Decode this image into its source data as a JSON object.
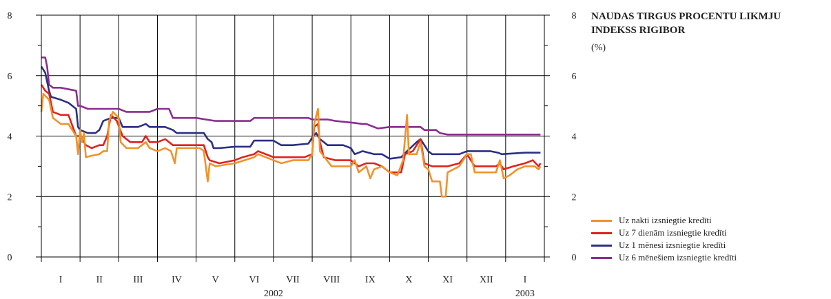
{
  "chart_data": {
    "type": "line",
    "title_lines": [
      "NAUDAS TIRGUS PROCENTU LIKMJU",
      "INDEKSS RIGIBOR"
    ],
    "unit": "(%)",
    "ylim": [
      0,
      8
    ],
    "yticks": [
      "0",
      "2",
      "4",
      "6",
      "8"
    ],
    "months": [
      "I",
      "II",
      "III",
      "IV",
      "V",
      "VI",
      "VII",
      "VIII",
      "IX",
      "X",
      "XI",
      "XII",
      "I"
    ],
    "years": [
      "2002",
      "2003"
    ],
    "grid": true,
    "legend_position": "right",
    "x_index_range": [
      0,
      13
    ],
    "series": [
      {
        "name": "Uz nakti izsniegtie kredīti",
        "color": "#f0922c",
        "values": [
          [
            0,
            4.8
          ],
          [
            0.05,
            5.4
          ],
          [
            0.2,
            5.2
          ],
          [
            0.3,
            4.6
          ],
          [
            0.5,
            4.4
          ],
          [
            0.7,
            4.4
          ],
          [
            0.9,
            4.0
          ],
          [
            0.95,
            3.4
          ],
          [
            1.0,
            4.2
          ],
          [
            1.05,
            3.8
          ],
          [
            1.1,
            4.1
          ],
          [
            1.15,
            3.3
          ],
          [
            1.3,
            3.35
          ],
          [
            1.5,
            3.4
          ],
          [
            1.6,
            3.5
          ],
          [
            1.7,
            3.5
          ],
          [
            1.75,
            4.5
          ],
          [
            1.85,
            4.8
          ],
          [
            2.0,
            4.6
          ],
          [
            2.05,
            3.8
          ],
          [
            2.2,
            3.6
          ],
          [
            2.5,
            3.6
          ],
          [
            2.7,
            3.8
          ],
          [
            2.8,
            3.6
          ],
          [
            3.0,
            3.5
          ],
          [
            3.2,
            3.6
          ],
          [
            3.35,
            3.5
          ],
          [
            3.45,
            3.1
          ],
          [
            3.5,
            3.6
          ],
          [
            4.0,
            3.6
          ],
          [
            4.1,
            3.6
          ],
          [
            4.2,
            3.5
          ],
          [
            4.3,
            2.5
          ],
          [
            4.35,
            3.1
          ],
          [
            4.5,
            3.0
          ],
          [
            5.0,
            3.1
          ],
          [
            5.5,
            3.3
          ],
          [
            5.6,
            3.4
          ],
          [
            6.0,
            3.2
          ],
          [
            6.2,
            3.1
          ],
          [
            6.5,
            3.2
          ],
          [
            6.9,
            3.2
          ],
          [
            7.0,
            3.4
          ],
          [
            7.05,
            4.4
          ],
          [
            7.15,
            4.9
          ],
          [
            7.2,
            3.5
          ],
          [
            7.5,
            3.0
          ],
          [
            8.0,
            3.0
          ],
          [
            8.1,
            3.2
          ],
          [
            8.2,
            2.8
          ],
          [
            8.4,
            3.0
          ],
          [
            8.5,
            2.6
          ],
          [
            8.6,
            2.9
          ],
          [
            8.8,
            3.0
          ],
          [
            9.0,
            2.8
          ],
          [
            9.2,
            2.7
          ],
          [
            9.35,
            3.2
          ],
          [
            9.45,
            4.7
          ],
          [
            9.5,
            3.4
          ],
          [
            9.7,
            3.4
          ],
          [
            9.8,
            3.8
          ],
          [
            9.9,
            3.0
          ],
          [
            10.0,
            2.9
          ],
          [
            10.1,
            2.5
          ],
          [
            10.3,
            2.5
          ],
          [
            10.35,
            2.0
          ],
          [
            10.45,
            2.0
          ],
          [
            10.5,
            2.8
          ],
          [
            10.8,
            3.0
          ],
          [
            11.0,
            3.4
          ],
          [
            11.1,
            3.4
          ],
          [
            11.2,
            2.8
          ],
          [
            11.5,
            2.8
          ],
          [
            11.75,
            2.8
          ],
          [
            11.85,
            3.2
          ],
          [
            11.95,
            2.6
          ],
          [
            12.1,
            2.7
          ],
          [
            12.3,
            2.9
          ],
          [
            12.5,
            3.0
          ],
          [
            12.75,
            3.0
          ],
          [
            12.85,
            2.9
          ],
          [
            12.9,
            3.0
          ]
        ]
      },
      {
        "name": "Uz 7 dienām izsniegtie kredīti",
        "color": "#e0221c",
        "values": [
          [
            0,
            5.7
          ],
          [
            0.1,
            5.5
          ],
          [
            0.2,
            5.4
          ],
          [
            0.3,
            4.8
          ],
          [
            0.5,
            4.7
          ],
          [
            0.7,
            4.7
          ],
          [
            0.9,
            4.0
          ],
          [
            1.0,
            4.0
          ],
          [
            1.1,
            3.8
          ],
          [
            1.15,
            3.7
          ],
          [
            1.3,
            3.6
          ],
          [
            1.5,
            3.7
          ],
          [
            1.6,
            3.7
          ],
          [
            1.7,
            4.0
          ],
          [
            1.8,
            4.7
          ],
          [
            1.95,
            4.5
          ],
          [
            2.1,
            4.0
          ],
          [
            2.3,
            3.8
          ],
          [
            2.6,
            3.8
          ],
          [
            2.7,
            4.0
          ],
          [
            2.8,
            3.8
          ],
          [
            3.0,
            3.8
          ],
          [
            3.2,
            3.9
          ],
          [
            3.4,
            3.7
          ],
          [
            3.5,
            3.7
          ],
          [
            4.2,
            3.7
          ],
          [
            4.3,
            3.3
          ],
          [
            4.35,
            3.2
          ],
          [
            4.6,
            3.1
          ],
          [
            5.0,
            3.2
          ],
          [
            5.2,
            3.3
          ],
          [
            5.5,
            3.4
          ],
          [
            5.6,
            3.5
          ],
          [
            6.0,
            3.3
          ],
          [
            6.3,
            3.3
          ],
          [
            6.8,
            3.3
          ],
          [
            7.0,
            3.4
          ],
          [
            7.05,
            4.3
          ],
          [
            7.15,
            4.4
          ],
          [
            7.2,
            3.8
          ],
          [
            7.3,
            3.3
          ],
          [
            7.6,
            3.2
          ],
          [
            8.0,
            3.2
          ],
          [
            8.2,
            3.0
          ],
          [
            8.4,
            3.1
          ],
          [
            8.6,
            3.1
          ],
          [
            8.8,
            3.0
          ],
          [
            9.0,
            2.8
          ],
          [
            9.3,
            2.8
          ],
          [
            9.4,
            3.4
          ],
          [
            9.6,
            3.5
          ],
          [
            9.8,
            3.9
          ],
          [
            9.9,
            3.1
          ],
          [
            10.1,
            3.0
          ],
          [
            10.5,
            3.0
          ],
          [
            10.8,
            3.1
          ],
          [
            11.0,
            3.4
          ],
          [
            11.2,
            3.0
          ],
          [
            11.5,
            3.0
          ],
          [
            11.75,
            3.0
          ],
          [
            11.85,
            3.1
          ],
          [
            11.95,
            2.9
          ],
          [
            12.2,
            3.0
          ],
          [
            12.5,
            3.1
          ],
          [
            12.7,
            3.2
          ],
          [
            12.85,
            3.0
          ],
          [
            12.9,
            3.1
          ]
        ]
      },
      {
        "name": "Uz 1 mēnesi izsniegtie kredīti",
        "color": "#2a2f84",
        "values": [
          [
            0,
            6.3
          ],
          [
            0.1,
            6.1
          ],
          [
            0.2,
            5.5
          ],
          [
            0.25,
            5.3
          ],
          [
            0.5,
            5.2
          ],
          [
            0.7,
            5.1
          ],
          [
            0.9,
            4.9
          ],
          [
            0.95,
            4.3
          ],
          [
            1.0,
            4.2
          ],
          [
            1.2,
            4.1
          ],
          [
            1.4,
            4.1
          ],
          [
            1.5,
            4.2
          ],
          [
            1.6,
            4.5
          ],
          [
            1.8,
            4.6
          ],
          [
            2.0,
            4.6
          ],
          [
            2.1,
            4.3
          ],
          [
            2.5,
            4.3
          ],
          [
            2.7,
            4.4
          ],
          [
            2.8,
            4.3
          ],
          [
            3.2,
            4.3
          ],
          [
            3.4,
            4.2
          ],
          [
            3.5,
            4.1
          ],
          [
            4.0,
            4.1
          ],
          [
            4.2,
            4.1
          ],
          [
            4.3,
            3.9
          ],
          [
            4.4,
            3.8
          ],
          [
            4.45,
            3.6
          ],
          [
            4.6,
            3.6
          ],
          [
            5.0,
            3.65
          ],
          [
            5.4,
            3.65
          ],
          [
            5.5,
            3.85
          ],
          [
            6.0,
            3.85
          ],
          [
            6.2,
            3.7
          ],
          [
            6.5,
            3.7
          ],
          [
            6.9,
            3.75
          ],
          [
            7.0,
            3.95
          ],
          [
            7.1,
            4.1
          ],
          [
            7.2,
            3.9
          ],
          [
            7.4,
            3.7
          ],
          [
            7.8,
            3.7
          ],
          [
            8.0,
            3.6
          ],
          [
            8.1,
            3.4
          ],
          [
            8.3,
            3.5
          ],
          [
            8.6,
            3.4
          ],
          [
            8.8,
            3.4
          ],
          [
            9.0,
            3.25
          ],
          [
            9.3,
            3.3
          ],
          [
            9.45,
            3.5
          ],
          [
            9.7,
            3.8
          ],
          [
            9.8,
            3.9
          ],
          [
            9.9,
            3.7
          ],
          [
            10.0,
            3.5
          ],
          [
            10.1,
            3.4
          ],
          [
            10.5,
            3.4
          ],
          [
            10.8,
            3.4
          ],
          [
            11.0,
            3.5
          ],
          [
            11.4,
            3.5
          ],
          [
            11.6,
            3.5
          ],
          [
            11.8,
            3.45
          ],
          [
            11.9,
            3.4
          ],
          [
            12.5,
            3.45
          ],
          [
            12.6,
            3.45
          ],
          [
            12.9,
            3.45
          ]
        ]
      },
      {
        "name": "Uz 6 mēnešiem izsniegtie kredīti",
        "color": "#8b2d8f",
        "values": [
          [
            0,
            6.6
          ],
          [
            0.1,
            6.6
          ],
          [
            0.15,
            6.3
          ],
          [
            0.2,
            5.7
          ],
          [
            0.3,
            5.6
          ],
          [
            0.5,
            5.6
          ],
          [
            0.9,
            5.5
          ],
          [
            0.95,
            5.0
          ],
          [
            1.0,
            5.0
          ],
          [
            1.2,
            4.9
          ],
          [
            1.5,
            4.9
          ],
          [
            1.8,
            4.9
          ],
          [
            2.0,
            4.9
          ],
          [
            2.2,
            4.8
          ],
          [
            2.4,
            4.8
          ],
          [
            2.5,
            4.8
          ],
          [
            2.8,
            4.8
          ],
          [
            3.0,
            4.9
          ],
          [
            3.3,
            4.9
          ],
          [
            3.4,
            4.6
          ],
          [
            3.6,
            4.6
          ],
          [
            4.0,
            4.6
          ],
          [
            4.5,
            4.5
          ],
          [
            5.0,
            4.5
          ],
          [
            5.4,
            4.5
          ],
          [
            5.5,
            4.6
          ],
          [
            6.0,
            4.6
          ],
          [
            6.5,
            4.6
          ],
          [
            6.9,
            4.6
          ],
          [
            7.0,
            4.55
          ],
          [
            7.4,
            4.55
          ],
          [
            7.6,
            4.5
          ],
          [
            8.0,
            4.45
          ],
          [
            8.3,
            4.4
          ],
          [
            8.4,
            4.4
          ],
          [
            8.7,
            4.25
          ],
          [
            9.0,
            4.3
          ],
          [
            9.4,
            4.3
          ],
          [
            9.8,
            4.3
          ],
          [
            9.9,
            4.2
          ],
          [
            10.2,
            4.2
          ],
          [
            10.3,
            4.1
          ],
          [
            10.5,
            4.05
          ],
          [
            10.8,
            4.05
          ],
          [
            11.5,
            4.05
          ],
          [
            11.6,
            4.05
          ],
          [
            12.2,
            4.05
          ],
          [
            12.9,
            4.05
          ]
        ]
      }
    ]
  }
}
